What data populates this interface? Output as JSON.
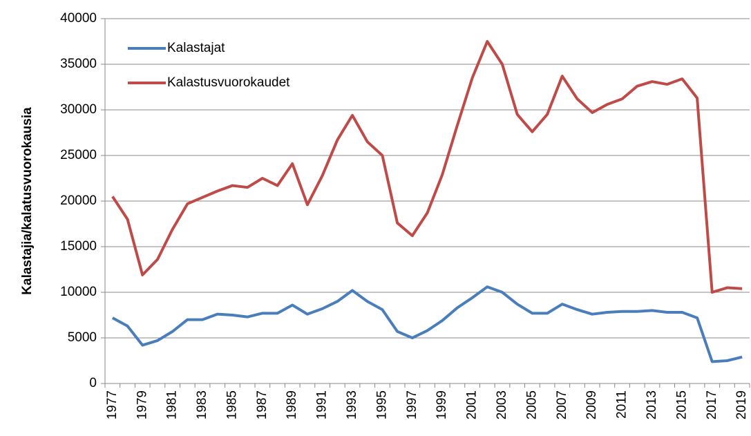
{
  "chart_data": {
    "type": "line",
    "ylabel": "Kalastajia/kalatusvuorokausia",
    "categories": [
      "1977",
      null,
      "1979",
      null,
      "1981",
      null,
      "1983",
      null,
      "1985",
      null,
      "1987",
      null,
      "1989",
      null,
      "1991",
      null,
      "1993",
      null,
      "1995",
      null,
      "1997",
      null,
      "1999",
      null,
      "2001",
      null,
      "2003",
      null,
      "2005",
      null,
      "2007",
      null,
      "2009",
      null,
      "2011",
      null,
      "2013",
      null,
      "2015",
      null,
      "2017",
      null,
      "2019"
    ],
    "series": [
      {
        "name": "Kalastajat",
        "color": "#4a7ebb",
        "values": [
          7200,
          6300,
          4200,
          4700,
          5700,
          7000,
          7000,
          7600,
          7500,
          7300,
          7700,
          7700,
          8600,
          7600,
          8200,
          9000,
          10200,
          9000,
          8100,
          5700,
          5000,
          5800,
          6900,
          8300,
          9400,
          10600,
          10000,
          8700,
          7700,
          7700,
          8700,
          8100,
          7600,
          7800,
          7900,
          7900,
          8000,
          7800,
          7800,
          7200,
          2400,
          2500,
          2900
        ]
      },
      {
        "name": "Kalastusvuorokaudet",
        "color": "#be4b48",
        "values": [
          20500,
          18000,
          11900,
          13600,
          16900,
          19700,
          20400,
          21100,
          21700,
          21500,
          22500,
          21700,
          24100,
          19600,
          22800,
          26700,
          29400,
          26500,
          25000,
          17600,
          16200,
          18700,
          22900,
          28300,
          33500,
          37500,
          35000,
          29500,
          27600,
          29500,
          33700,
          31200,
          29700,
          30600,
          31200,
          32600,
          33100,
          32800,
          33400,
          31300,
          10000,
          10500,
          10400
        ]
      }
    ],
    "ylim": [
      0,
      40000
    ],
    "yticks": [
      0,
      5000,
      10000,
      15000,
      20000,
      25000,
      30000,
      35000,
      40000
    ],
    "grid": true,
    "legend": "upper left"
  }
}
